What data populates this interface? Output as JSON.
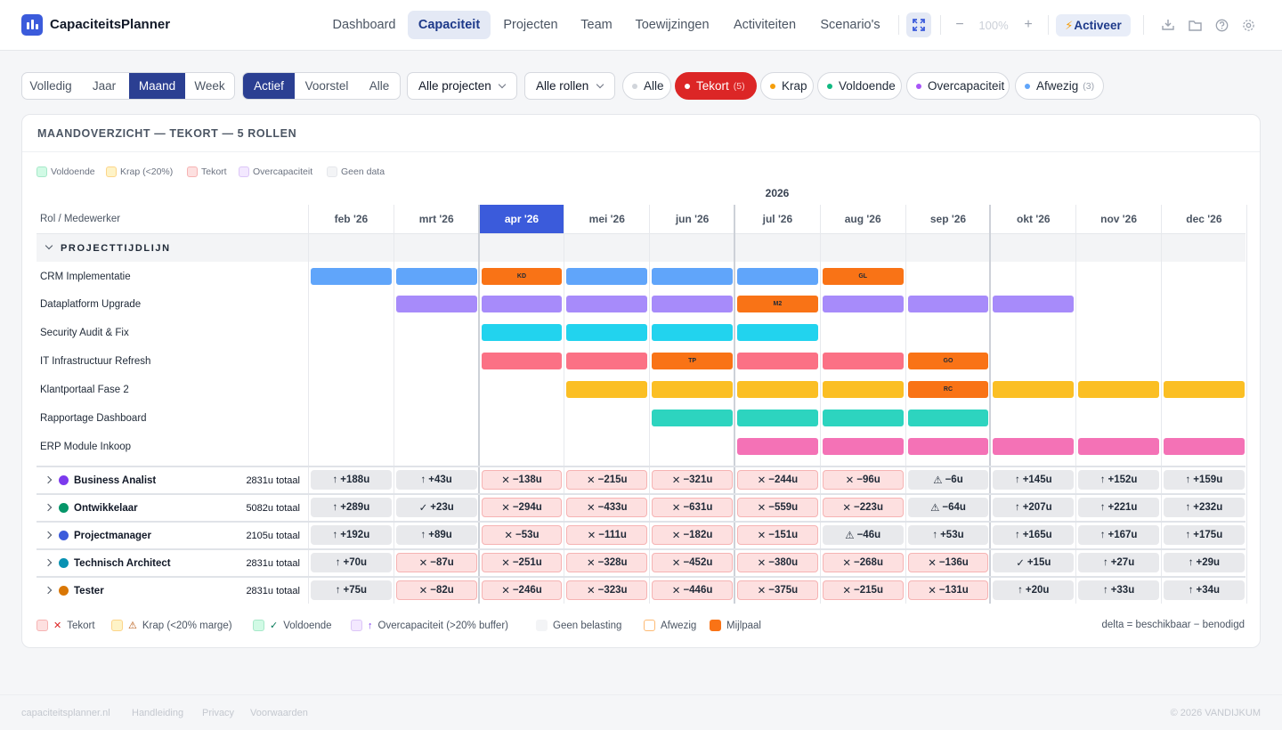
{
  "app": {
    "title": "CapaciteitsPlanner"
  },
  "nav": {
    "items": [
      "Dashboard",
      "Capaciteit",
      "Projecten",
      "Team",
      "Toewijzingen",
      "Activiteiten",
      "Scenario's"
    ],
    "active": "Capaciteit"
  },
  "toolbar": {
    "zoom": "100%",
    "activate_label": "Activeer",
    "icons": [
      "expand-icon",
      "zoom-out-icon",
      "zoom-in-icon",
      "bolt-icon",
      "import-icon",
      "folder-icon",
      "help-icon",
      "settings-icon"
    ]
  },
  "filters": {
    "period": [
      "Volledig",
      "Jaar",
      "Maand",
      "Week"
    ],
    "period_active": "Maand",
    "status": [
      "Actief",
      "Voorstel",
      "Alle"
    ],
    "status_active": "Actief",
    "projects_dropdown": "Alle projecten",
    "roles_dropdown": "Alle rollen",
    "chips": [
      {
        "label": "Alle",
        "count": "",
        "color": "#d1d5db"
      },
      {
        "label": "Tekort",
        "count": "(5)",
        "color": "#ffffff",
        "active": true
      },
      {
        "label": "Krap",
        "count": "",
        "color": "#f59e0b"
      },
      {
        "label": "Voldoende",
        "count": "",
        "color": "#10b981"
      },
      {
        "label": "Overcapaciteit",
        "count": "",
        "color": "#a855f7"
      },
      {
        "label": "Afwezig",
        "count": "(3)",
        "color": "#60a5fa"
      }
    ]
  },
  "card": {
    "title": "MAANDOVERZICHT — TEKORT — 5 ROLLEN"
  },
  "legend_top": [
    "Voldoende",
    "Krap (<20%)",
    "Tekort",
    "Overcapaciteit",
    "Geen data"
  ],
  "grid": {
    "year": "2026",
    "first_col": "Rol / Medewerker",
    "months": [
      "feb '26",
      "mrt '26",
      "apr '26",
      "mei '26",
      "jun '26",
      "jul '26",
      "aug '26",
      "sep '26",
      "okt '26",
      "nov '26",
      "dec '26"
    ],
    "current_month": "apr '26",
    "section": "PROJECTTIJDLIJN"
  },
  "projects": [
    {
      "name": "CRM Implementatie",
      "color": "#60a5fa",
      "start": 0,
      "end": 6,
      "milestones": [
        {
          "m": 2,
          "label": "KD"
        },
        {
          "m": 6,
          "label": "GL"
        }
      ]
    },
    {
      "name": "Dataplatform Upgrade",
      "color": "#a78bfa",
      "start": 1,
      "end": 8,
      "milestones": [
        {
          "m": 5,
          "label": "M2"
        }
      ]
    },
    {
      "name": "Security Audit & Fix",
      "color": "#22d3ee",
      "start": 2,
      "end": 5,
      "milestones": []
    },
    {
      "name": "IT Infrastructuur Refresh",
      "color": "#fb7185",
      "start": 2,
      "end": 7,
      "milestones": [
        {
          "m": 4,
          "label": "TP"
        },
        {
          "m": 7,
          "label": "GO"
        }
      ]
    },
    {
      "name": "Klantportaal Fase 2",
      "color": "#fbbf24",
      "start": 3,
      "end": 10,
      "milestones": [
        {
          "m": 7,
          "label": "RC"
        }
      ]
    },
    {
      "name": "Rapportage Dashboard",
      "color": "#2dd4bf",
      "start": 4,
      "end": 7,
      "milestones": []
    },
    {
      "name": "ERP Module Inkoop",
      "color": "#f472b6",
      "start": 5,
      "end": 10,
      "milestones": []
    }
  ],
  "roles": [
    {
      "name": "Business Analist",
      "color": "#7c3aed",
      "total": "2831u totaal",
      "cells": [
        [
          "over",
          "+188u"
        ],
        [
          "over",
          "+43u"
        ],
        [
          "tek",
          "−138u"
        ],
        [
          "tek",
          "−215u"
        ],
        [
          "tek",
          "−321u"
        ],
        [
          "tek",
          "−244u"
        ],
        [
          "tek",
          "−96u"
        ],
        [
          "krap",
          "−6u"
        ],
        [
          "over",
          "+145u"
        ],
        [
          "over",
          "+152u"
        ],
        [
          "over",
          "+159u"
        ]
      ]
    },
    {
      "name": "Ontwikkelaar",
      "color": "#059669",
      "total": "5082u totaal",
      "cells": [
        [
          "over",
          "+289u"
        ],
        [
          "ok",
          "+23u"
        ],
        [
          "tek",
          "−294u"
        ],
        [
          "tek",
          "−433u"
        ],
        [
          "tek",
          "−631u"
        ],
        [
          "tek",
          "−559u"
        ],
        [
          "tek",
          "−223u"
        ],
        [
          "krap",
          "−64u"
        ],
        [
          "over",
          "+207u"
        ],
        [
          "over",
          "+221u"
        ],
        [
          "over",
          "+232u"
        ]
      ]
    },
    {
      "name": "Projectmanager",
      "color": "#3b5bdb",
      "total": "2105u totaal",
      "cells": [
        [
          "over",
          "+192u"
        ],
        [
          "over",
          "+89u"
        ],
        [
          "tek",
          "−53u"
        ],
        [
          "tek",
          "−111u"
        ],
        [
          "tek",
          "−182u"
        ],
        [
          "tek",
          "−151u"
        ],
        [
          "krap",
          "−46u"
        ],
        [
          "over",
          "+53u"
        ],
        [
          "over",
          "+165u"
        ],
        [
          "over",
          "+167u"
        ],
        [
          "over",
          "+175u"
        ]
      ]
    },
    {
      "name": "Technisch Architect",
      "color": "#0891b2",
      "total": "2831u totaal",
      "cells": [
        [
          "over",
          "+70u"
        ],
        [
          "tek",
          "−87u"
        ],
        [
          "tek",
          "−251u"
        ],
        [
          "tek",
          "−328u"
        ],
        [
          "tek",
          "−452u"
        ],
        [
          "tek",
          "−380u"
        ],
        [
          "tek",
          "−268u"
        ],
        [
          "tek",
          "−136u"
        ],
        [
          "ok",
          "+15u"
        ],
        [
          "over",
          "+27u"
        ],
        [
          "over",
          "+29u"
        ]
      ]
    },
    {
      "name": "Tester",
      "color": "#d97706",
      "total": "2831u totaal",
      "cells": [
        [
          "over",
          "+75u"
        ],
        [
          "tek",
          "−82u"
        ],
        [
          "tek",
          "−246u"
        ],
        [
          "tek",
          "−323u"
        ],
        [
          "tek",
          "−446u"
        ],
        [
          "tek",
          "−375u"
        ],
        [
          "tek",
          "−215u"
        ],
        [
          "tek",
          "−131u"
        ],
        [
          "over",
          "+20u"
        ],
        [
          "over",
          "+33u"
        ],
        [
          "over",
          "+34u"
        ]
      ]
    }
  ],
  "legend_bottom": [
    {
      "label": "Tekort",
      "sym": "✕",
      "symcolor": "#dc2626",
      "bg": "#fde0e0",
      "border": "#f6b3b3"
    },
    {
      "label": "Krap (<20% marge)",
      "sym": "⚠",
      "symcolor": "#b45309",
      "bg": "#fef3c7",
      "border": "#fcd58a"
    },
    {
      "label": "Voldoende",
      "sym": "✓",
      "symcolor": "#047857",
      "bg": "#d1fae5",
      "border": "#a7e8c9"
    },
    {
      "label": "Overcapaciteit (>20% buffer)",
      "sym": "↑",
      "symcolor": "#7c3aed",
      "bg": "#f3e8ff",
      "border": "#dcc6f7"
    },
    {
      "label": "Geen belasting",
      "sym": "",
      "symcolor": "",
      "bg": "#f3f4f6",
      "border": "#f3f4f6"
    },
    {
      "label": "Afwezig",
      "sym": "",
      "symcolor": "",
      "bg": "#fff",
      "border": "#fdba74"
    },
    {
      "label": "Mijlpaal",
      "sym": "",
      "symcolor": "",
      "bg": "#f97316",
      "border": "#f97316"
    }
  ],
  "delta_note": "delta = beschikbaar − benodigd",
  "footer": {
    "links": [
      "capaciteitsplanner.nl",
      "Handleiding",
      "Privacy",
      "Voorwaarden"
    ],
    "copyright": "© 2026 VANDIJKUM"
  },
  "colors": {
    "accent": "#3b5bdb",
    "tekort": "#dc2626",
    "milestone": "#f97316"
  }
}
